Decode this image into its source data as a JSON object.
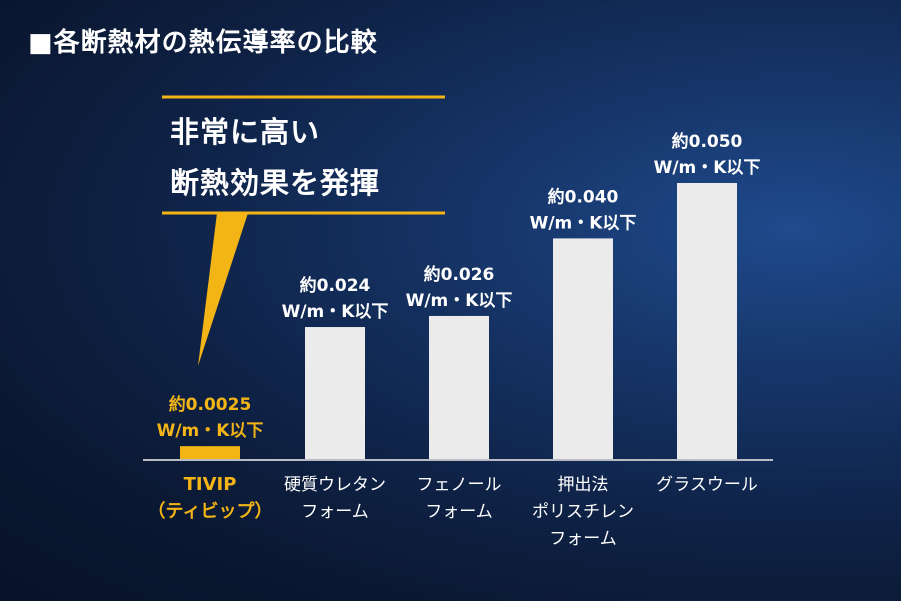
{
  "title": "■各断熱材の熱伝導率の比較",
  "callout": {
    "lines": [
      "非常に高い",
      "断熱効果を発揮"
    ]
  },
  "colors": {
    "highlight": "#f3b416",
    "bar": "#ecebeb",
    "baseline": "#b9bcc4",
    "text": "#ffffff"
  },
  "chart_data": {
    "type": "bar",
    "title": "■各断熱材の熱伝導率の比較",
    "unit": "W/m・K",
    "categories": [
      [
        "TIVIP",
        "（ティビップ）"
      ],
      [
        "硬質ウレタン",
        "フォーム"
      ],
      [
        "フェノール",
        "フォーム"
      ],
      [
        "押出法",
        "ポリスチレン",
        "フォーム"
      ],
      [
        "グラスウール"
      ]
    ],
    "values": [
      0.0025,
      0.024,
      0.026,
      0.04,
      0.05
    ],
    "value_labels": [
      [
        "約0.0025",
        "W/m・K以下"
      ],
      [
        "約0.024",
        "W/m・K以下"
      ],
      [
        "約0.026",
        "W/m・K以下"
      ],
      [
        "約0.040",
        "W/m・K以下"
      ],
      [
        "約0.050",
        "W/m・K以下"
      ]
    ],
    "highlight_index": 0,
    "ylim": [
      0,
      0.05
    ],
    "grid": false,
    "legend": "none"
  }
}
